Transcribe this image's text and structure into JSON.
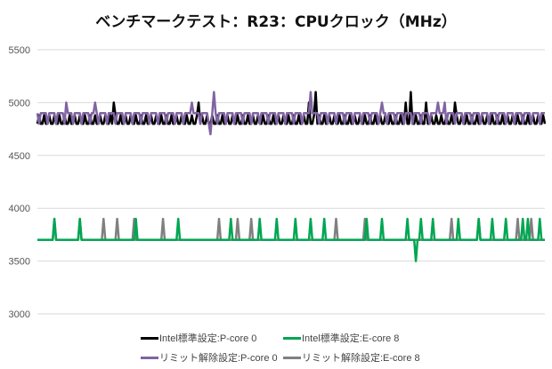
{
  "chart_data": {
    "type": "line",
    "title": "ベンチマークテスト：R23：CPUクロック（MHz）",
    "xlabel": "",
    "ylabel": "",
    "ylim": [
      3000,
      5500
    ],
    "yticks": [
      3000,
      3500,
      4000,
      4500,
      5000,
      5500
    ],
    "grid": true,
    "legend_position": "bottom",
    "n_points": 300,
    "series": [
      {
        "name": "Intel標準設定:P-core 0",
        "color": "#000000",
        "base": 4800,
        "alternate": {
          "value": 4880,
          "period": 3
        },
        "spikes": [
          [
            45,
            5000
          ],
          [
            95,
            5000
          ],
          [
            160,
            5000
          ],
          [
            164,
            5100
          ],
          [
            217,
            5000
          ],
          [
            220,
            5100
          ],
          [
            229,
            5000
          ],
          [
            246,
            5000
          ]
        ]
      },
      {
        "name": "Intel標準設定:E-core 8",
        "color": "#00a651",
        "base": 3700,
        "spikes": [
          [
            10,
            3900
          ],
          [
            25,
            3900
          ],
          [
            58,
            3900
          ],
          [
            83,
            3900
          ],
          [
            114,
            3900
          ],
          [
            131,
            3900
          ],
          [
            141,
            3900
          ],
          [
            152,
            3900
          ],
          [
            161,
            3900
          ],
          [
            169,
            3900
          ],
          [
            194,
            3900
          ],
          [
            203,
            3900
          ],
          [
            218,
            3900
          ],
          [
            223,
            3500
          ],
          [
            226,
            3900
          ],
          [
            233,
            3900
          ],
          [
            248,
            3900
          ],
          [
            260,
            3900
          ],
          [
            268,
            3900
          ],
          [
            276,
            3900
          ],
          [
            286,
            3900
          ],
          [
            289,
            3900
          ],
          [
            296,
            3900
          ]
        ]
      },
      {
        "name": "リミット解除設定:P-core 0",
        "color": "#8064a2",
        "base": 4900,
        "alternate": {
          "value": 4800,
          "period": 5
        },
        "spikes": [
          [
            17,
            5000
          ],
          [
            34,
            5000
          ],
          [
            91,
            5000
          ],
          [
            102,
            4700
          ],
          [
            104,
            5100
          ],
          [
            161,
            5100
          ],
          [
            203,
            5000
          ],
          [
            236,
            5000
          ],
          [
            240,
            5000
          ]
        ]
      },
      {
        "name": "リミット解除設定:E-core 8",
        "color": "#808080",
        "base": 3700,
        "spikes": [
          [
            10,
            3900
          ],
          [
            25,
            3900
          ],
          [
            39,
            3900
          ],
          [
            47,
            3900
          ],
          [
            57,
            3900
          ],
          [
            74,
            3900
          ],
          [
            107,
            3900
          ],
          [
            118,
            3900
          ],
          [
            126,
            3900
          ],
          [
            176,
            3900
          ],
          [
            193,
            3900
          ],
          [
            244,
            3900
          ],
          [
            260,
            3900
          ],
          [
            283,
            3900
          ],
          [
            291,
            3900
          ]
        ]
      }
    ]
  }
}
